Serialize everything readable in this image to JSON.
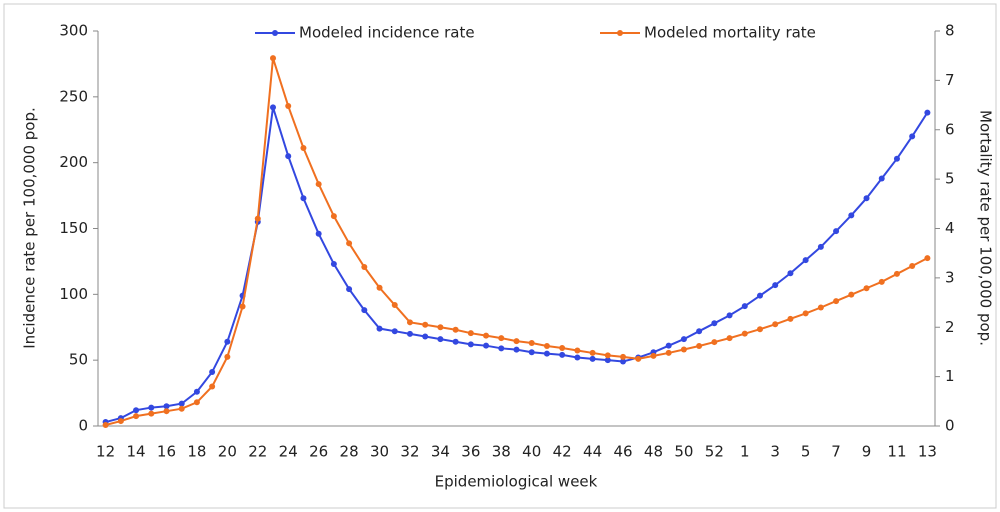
{
  "chart_data": {
    "type": "line",
    "x_label": "Epidemiological week",
    "y_label": "Incidence rate per 100,000 pop.",
    "y2_label": "Mortality rate per 100,000 pop.",
    "categories": [
      "12",
      null,
      "14",
      null,
      "16",
      null,
      "18",
      null,
      "20",
      null,
      "22",
      null,
      "24",
      null,
      "26",
      null,
      "28",
      null,
      "30",
      null,
      "32",
      null,
      "34",
      null,
      "36",
      null,
      "38",
      null,
      "40",
      null,
      "42",
      null,
      "44",
      null,
      "46",
      null,
      "48",
      null,
      "50",
      null,
      "52",
      null,
      "1",
      null,
      "3",
      null,
      "5",
      null,
      "7",
      null,
      "9",
      null,
      "11",
      null,
      "13"
    ],
    "series": [
      {
        "name": "Modeled incidence rate",
        "color": "#3348e0",
        "values": [
          3,
          6,
          12,
          14,
          15,
          17,
          26,
          41,
          64,
          99,
          155,
          242,
          205,
          173,
          146,
          123,
          104,
          88,
          74,
          72,
          70,
          68,
          66,
          64,
          62,
          61,
          59,
          58,
          56,
          55,
          54,
          52,
          51,
          50,
          49,
          52,
          56,
          61,
          66,
          72,
          78,
          84,
          91,
          99,
          107,
          116,
          126,
          136,
          148,
          160,
          173,
          188,
          203,
          220,
          238
        ]
      },
      {
        "name": "Modeled mortality rate",
        "color": "#f07020",
        "axis": "y2",
        "values": [
          0.02,
          0.1,
          0.2,
          0.25,
          0.3,
          0.35,
          0.48,
          0.8,
          1.4,
          2.42,
          4.2,
          7.45,
          6.48,
          5.63,
          4.9,
          4.25,
          3.7,
          3.22,
          2.8,
          2.45,
          2.1,
          2.05,
          2.0,
          1.95,
          1.88,
          1.83,
          1.78,
          1.72,
          1.68,
          1.62,
          1.58,
          1.53,
          1.48,
          1.43,
          1.4,
          1.36,
          1.42,
          1.48,
          1.55,
          1.62,
          1.7,
          1.78,
          1.87,
          1.96,
          2.06,
          2.17,
          2.28,
          2.4,
          2.53,
          2.66,
          2.79,
          2.92,
          3.08,
          3.24,
          3.4
        ]
      }
    ],
    "ylim": [
      0,
      300
    ],
    "yticks": [
      0,
      50,
      100,
      150,
      200,
      250,
      300
    ],
    "y2lim": [
      0,
      8
    ],
    "y2ticks": [
      0,
      1,
      2,
      3,
      4,
      5,
      6,
      7,
      8
    ],
    "legend": "top"
  }
}
